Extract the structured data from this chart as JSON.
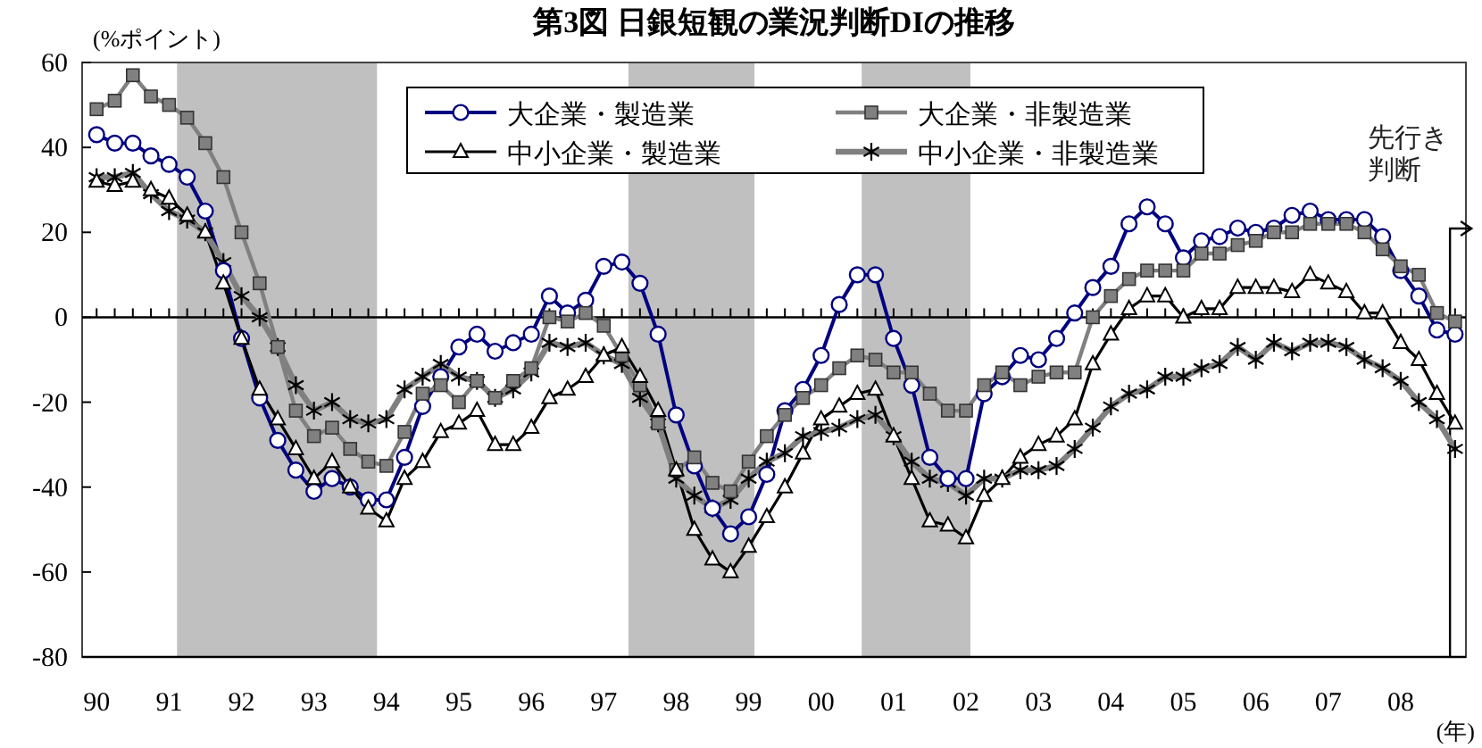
{
  "chart_data": {
    "type": "line",
    "title": "第3図 日銀短観の業況判断DIの推移",
    "ylabel": "(%ポイント)",
    "xlabel": "(年)",
    "x": [
      1990,
      1990.25,
      1990.5,
      1990.75,
      1991,
      1991.25,
      1991.5,
      1991.75,
      1992,
      1992.25,
      1992.5,
      1992.75,
      1993,
      1993.25,
      1993.5,
      1993.75,
      1994,
      1994.25,
      1994.5,
      1994.75,
      1995,
      1995.25,
      1995.5,
      1995.75,
      1996,
      1996.25,
      1996.5,
      1996.75,
      1997,
      1997.25,
      1997.5,
      1997.75,
      1998,
      1998.25,
      1998.5,
      1998.75,
      1999,
      1999.25,
      1999.5,
      1999.75,
      2000,
      2000.25,
      2000.5,
      2000.75,
      2001,
      2001.25,
      2001.5,
      2001.75,
      2002,
      2002.25,
      2002.5,
      2002.75,
      2003,
      2003.25,
      2003.5,
      2003.75,
      2004,
      2004.25,
      2004.5,
      2004.75,
      2005,
      2005.25,
      2005.5,
      2005.75,
      2006,
      2006.25,
      2006.5,
      2006.75,
      2007,
      2007.25,
      2007.5,
      2007.75,
      2008,
      2008.25,
      2008.5,
      2008.75
    ],
    "xlim": [
      1989.8,
      2008.9
    ],
    "xticks": [
      {
        "value": 1990,
        "label": "90"
      },
      {
        "value": 1991,
        "label": "91"
      },
      {
        "value": 1992,
        "label": "92"
      },
      {
        "value": 1993,
        "label": "93"
      },
      {
        "value": 1994,
        "label": "94"
      },
      {
        "value": 1995,
        "label": "95"
      },
      {
        "value": 1996,
        "label": "96"
      },
      {
        "value": 1997,
        "label": "97"
      },
      {
        "value": 1998,
        "label": "98"
      },
      {
        "value": 1999,
        "label": "99"
      },
      {
        "value": 2000,
        "label": "00"
      },
      {
        "value": 2001,
        "label": "01"
      },
      {
        "value": 2002,
        "label": "02"
      },
      {
        "value": 2003,
        "label": "03"
      },
      {
        "value": 2004,
        "label": "04"
      },
      {
        "value": 2005,
        "label": "05"
      },
      {
        "value": 2006,
        "label": "06"
      },
      {
        "value": 2007,
        "label": "07"
      },
      {
        "value": 2008,
        "label": "08"
      }
    ],
    "ylim": [
      -80,
      60
    ],
    "yticks": [
      -80,
      -60,
      -40,
      -20,
      0,
      20,
      40,
      60
    ],
    "legend": "top",
    "line_style": "solid",
    "series": [
      {
        "name": "大企業・製造業",
        "color": "#000080",
        "marker": "circle",
        "values": [
          43,
          41,
          41,
          38,
          36,
          33,
          25,
          11,
          -5,
          -19,
          -29,
          -36,
          -41,
          -38,
          -40,
          -43,
          -43,
          -33,
          -21,
          -14,
          -7,
          -4,
          -8,
          -6,
          -4,
          5,
          1,
          4,
          12,
          13,
          8,
          -4,
          -23,
          -35,
          -45,
          -51,
          -47,
          -37,
          -22,
          -17,
          -9,
          3,
          10,
          10,
          -5,
          -16,
          -33,
          -38,
          -38,
          -18,
          -14,
          -9,
          -10,
          -5,
          1,
          7,
          12,
          22,
          26,
          22,
          14,
          18,
          19,
          21,
          20,
          21,
          24,
          25,
          23,
          23,
          23,
          19,
          11,
          5,
          -3,
          -4
        ]
      },
      {
        "name": "大企業・非製造業",
        "color": "#808080",
        "marker": "square",
        "values": [
          49,
          51,
          57,
          52,
          50,
          47,
          41,
          33,
          20,
          8,
          -7,
          -22,
          -28,
          -26,
          -31,
          -34,
          -35,
          -27,
          -18,
          -16,
          -20,
          -15,
          -19,
          -15,
          -12,
          0,
          -1,
          1,
          -2,
          -9,
          -16,
          -25,
          -36,
          -33,
          -39,
          -41,
          -34,
          -28,
          -23,
          -19,
          -16,
          -12,
          -9,
          -10,
          -13,
          -13,
          -18,
          -22,
          -22,
          -16,
          -13,
          -16,
          -14,
          -13,
          -13,
          0,
          5,
          9,
          11,
          11,
          11,
          15,
          15,
          17,
          18,
          20,
          20,
          22,
          22,
          22,
          20,
          16,
          12,
          10,
          1,
          -1
        ]
      },
      {
        "name": "中小企業・製造業",
        "color": "#000000",
        "marker": "triangle",
        "values": [
          32,
          31,
          32,
          30,
          28,
          24,
          20,
          8,
          -5,
          -17,
          -24,
          -31,
          -38,
          -34,
          -40,
          -45,
          -48,
          -38,
          -34,
          -27,
          -25,
          -22,
          -30,
          -30,
          -26,
          -19,
          -17,
          -14,
          -9,
          -7,
          -14,
          -22,
          -36,
          -50,
          -57,
          -60,
          -54,
          -47,
          -40,
          -32,
          -24,
          -21,
          -18,
          -17,
          -28,
          -38,
          -48,
          -49,
          -52,
          -42,
          -38,
          -33,
          -30,
          -28,
          -24,
          -11,
          -4,
          2,
          5,
          5,
          0,
          2,
          2,
          7,
          7,
          7,
          6,
          10,
          8,
          6,
          1,
          1,
          -6,
          -10,
          -18,
          -25
        ]
      },
      {
        "name": "中小企業・非製造業",
        "color": "#808080",
        "marker": "cross",
        "values": [
          33,
          33,
          34,
          29,
          25,
          23,
          20,
          13,
          5,
          0,
          -7,
          -16,
          -22,
          -20,
          -24,
          -25,
          -24,
          -17,
          -14,
          -11,
          -14,
          -15,
          -19,
          -17,
          -13,
          -6,
          -7,
          -6,
          -9,
          -11,
          -19,
          -25,
          -38,
          -42,
          -45,
          -43,
          -38,
          -34,
          -32,
          -28,
          -27,
          -26,
          -24,
          -23,
          -28,
          -34,
          -38,
          -39,
          -42,
          -38,
          -38,
          -36,
          -36,
          -35,
          -31,
          -26,
          -21,
          -18,
          -17,
          -14,
          -14,
          -12,
          -11,
          -7,
          -10,
          -6,
          -8,
          -6,
          -6,
          -7,
          -10,
          -12,
          -15,
          -20,
          -24,
          -31
        ]
      }
    ],
    "bands": [
      {
        "axis": "x",
        "from": 1991.11,
        "to": 1993.87,
        "color": "#c0c0c0"
      },
      {
        "axis": "x",
        "from": 1997.34,
        "to": 1999.08,
        "color": "#c0c0c0"
      },
      {
        "axis": "x",
        "from": 2000.56,
        "to": 2002.06,
        "color": "#c0c0c0"
      }
    ],
    "ref_lines": [
      {
        "axis": "x",
        "value": 2008.68,
        "label": "先行き判断",
        "color": "#000000"
      },
      {
        "axis": "y",
        "value": 0,
        "color": "#000000"
      }
    ]
  }
}
